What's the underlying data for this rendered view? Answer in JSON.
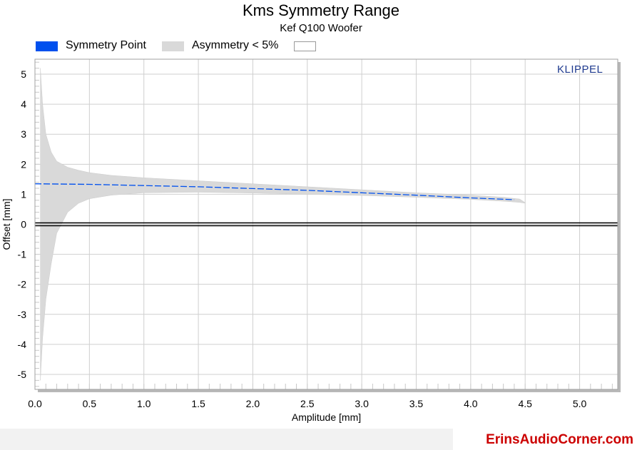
{
  "chart_data": {
    "type": "area",
    "title": "Kms Symmetry Range",
    "subtitle": "Kef Q100 Woofer",
    "xlabel": "Amplitude [mm]",
    "ylabel": "Offset [mm]",
    "xlim": [
      0.0,
      5.35
    ],
    "ylim": [
      -5.5,
      5.5
    ],
    "xticks": [
      "0.0",
      "0.5",
      "1.0",
      "1.5",
      "2.0",
      "2.5",
      "3.0",
      "3.5",
      "4.0",
      "4.5",
      "5.0"
    ],
    "yticks": [
      "5",
      "4",
      "3",
      "2",
      "1",
      "0",
      "-1",
      "-2",
      "-3",
      "-4",
      "-5"
    ],
    "grid": true,
    "legend": [
      {
        "label": "Symmetry Point",
        "color": "#0050ee"
      },
      {
        "label": "Asymmetry < 5%",
        "color": "#d9d9d9"
      },
      {
        "label": "",
        "color": "#ffffff"
      }
    ],
    "asymmetry_band": {
      "x": [
        0.05,
        0.07,
        0.1,
        0.15,
        0.2,
        0.3,
        0.4,
        0.5,
        0.7,
        1.0,
        1.5,
        2.0,
        2.5,
        3.0,
        3.5,
        4.0,
        4.3,
        4.45,
        4.5
      ],
      "upper": [
        5.2,
        4.0,
        3.0,
        2.4,
        2.1,
        1.9,
        1.8,
        1.72,
        1.63,
        1.55,
        1.45,
        1.35,
        1.25,
        1.15,
        1.05,
        0.97,
        0.9,
        0.84,
        0.72
      ],
      "lower": [
        -5.2,
        -3.8,
        -2.5,
        -1.3,
        -0.3,
        0.4,
        0.7,
        0.85,
        0.97,
        1.05,
        1.07,
        1.04,
        1.0,
        0.96,
        0.9,
        0.83,
        0.77,
        0.73,
        0.7
      ]
    },
    "symmetry_point": {
      "x": [
        0.0,
        0.5,
        1.0,
        1.5,
        2.0,
        2.5,
        3.0,
        3.5,
        4.0,
        4.4
      ],
      "y": [
        1.35,
        1.33,
        1.29,
        1.25,
        1.19,
        1.13,
        1.05,
        0.97,
        0.88,
        0.82
      ],
      "color": "#0050ee"
    },
    "zero_line": 0
  },
  "watermark": "KLIPPEL",
  "footer": "ErinsAudioCorner.com"
}
